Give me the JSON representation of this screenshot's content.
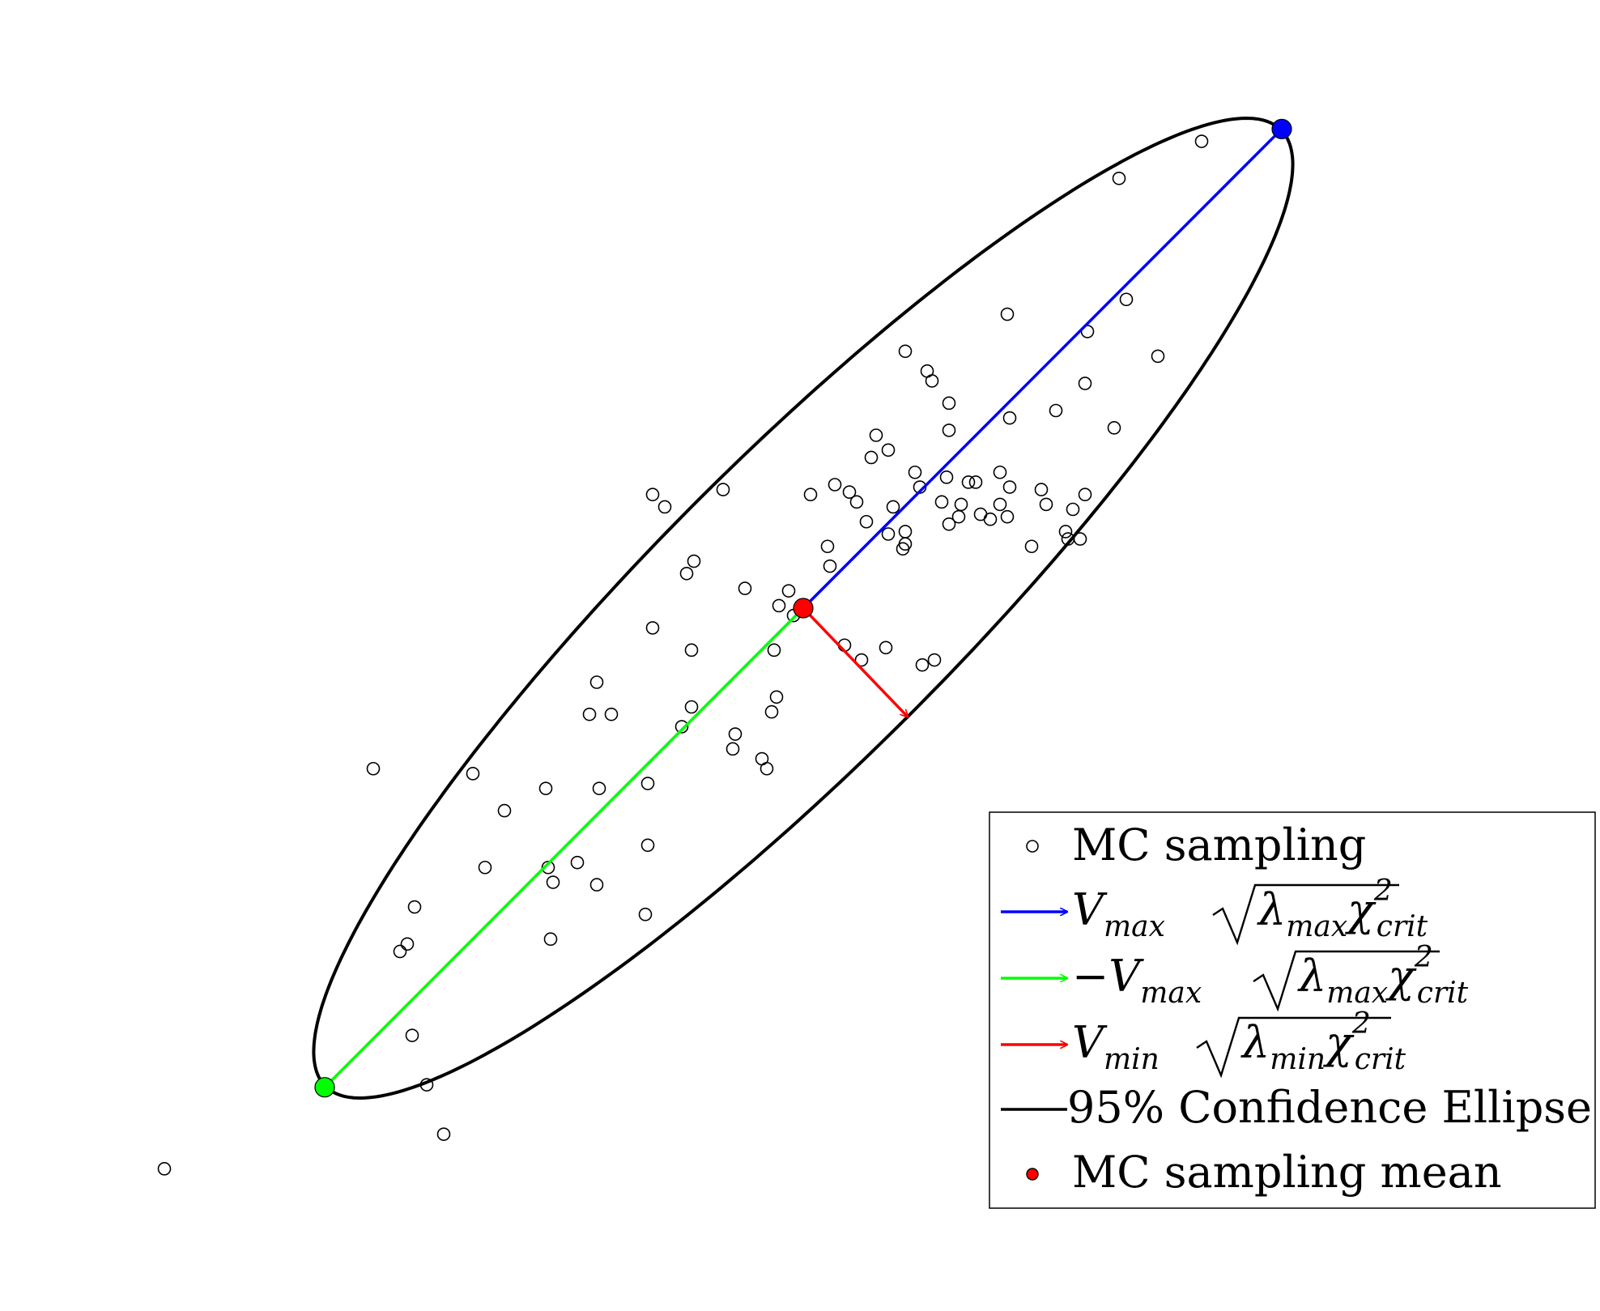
{
  "chart_data": {
    "type": "scatter",
    "title": "",
    "xlabel": "",
    "ylabel": "",
    "axes_visible": false,
    "grid": false,
    "legend_position": "bottom-right",
    "colors": {
      "samples": "#000000",
      "vmax": "#0000ff",
      "neg_vmax": "#00ff00",
      "vmin": "#ff0000",
      "ellipse": "#000000",
      "mean": "#ff0000"
    },
    "mean": {
      "x": 0,
      "y": 0
    },
    "vmax_endpoint": {
      "x": 19.7,
      "y": 19.4
    },
    "neg_vmax_endpoint": {
      "x": -19.7,
      "y": -19.4
    },
    "vmin_endpoint": {
      "x": 4.3,
      "y": -4.4
    },
    "ellipse": {
      "center": {
        "x": 0,
        "y": 0
      },
      "semi_major": 27.6,
      "semi_minor": 6.15,
      "angle_deg": 44.5,
      "label": "95% Confidence Ellipse"
    },
    "samples": [
      [
        16.4,
        18.9
      ],
      [
        13.0,
        17.4
      ],
      [
        13.3,
        12.5
      ],
      [
        8.4,
        11.9
      ],
      [
        11.7,
        11.2
      ],
      [
        14.6,
        10.2
      ],
      [
        11.6,
        9.1
      ],
      [
        4.2,
        10.4
      ],
      [
        5.1,
        9.6
      ],
      [
        5.3,
        9.2
      ],
      [
        6.0,
        8.3
      ],
      [
        10.4,
        8.0
      ],
      [
        8.5,
        7.7
      ],
      [
        6.0,
        7.2
      ],
      [
        12.8,
        7.3
      ],
      [
        3.0,
        7.0
      ],
      [
        3.5,
        6.4
      ],
      [
        2.8,
        6.1
      ],
      [
        4.6,
        5.5
      ],
      [
        5.9,
        5.3
      ],
      [
        7.1,
        5.1
      ],
      [
        4.8,
        4.9
      ],
      [
        1.3,
        5.0
      ],
      [
        0.3,
        4.6
      ],
      [
        6.8,
        5.1
      ],
      [
        8.1,
        5.5
      ],
      [
        8.5,
        4.9
      ],
      [
        5.7,
        4.3
      ],
      [
        9.8,
        4.8
      ],
      [
        11.6,
        4.6
      ],
      [
        11.1,
        4.0
      ],
      [
        8.1,
        4.2
      ],
      [
        8.4,
        3.7
      ],
      [
        7.3,
        3.8
      ],
      [
        1.9,
        4.7
      ],
      [
        -6.2,
        4.6
      ],
      [
        -3.3,
        4.8
      ],
      [
        -5.7,
        4.1
      ],
      [
        2.2,
        4.3
      ],
      [
        3.7,
        4.1
      ],
      [
        6.5,
        4.2
      ],
      [
        6.4,
        3.7
      ],
      [
        10.0,
        4.2
      ],
      [
        10.8,
        3.1
      ],
      [
        11.4,
        2.8
      ],
      [
        10.9,
        2.8
      ],
      [
        9.4,
        2.5
      ],
      [
        7.7,
        3.6
      ],
      [
        6.0,
        3.4
      ],
      [
        3.5,
        3.0
      ],
      [
        4.2,
        3.1
      ],
      [
        4.2,
        2.6
      ],
      [
        4.1,
        2.4
      ],
      [
        2.6,
        3.5
      ],
      [
        1.0,
        2.5
      ],
      [
        1.1,
        1.7
      ],
      [
        -0.6,
        0.7
      ],
      [
        -1.0,
        0.1
      ],
      [
        -0.4,
        -0.3
      ],
      [
        3.4,
        -1.6
      ],
      [
        5.4,
        -2.1
      ],
      [
        4.9,
        -2.3
      ],
      [
        2.4,
        -2.1
      ],
      [
        1.7,
        -1.5
      ],
      [
        -2.4,
        0.8
      ],
      [
        -4.8,
        1.4
      ],
      [
        -4.5,
        1.9
      ],
      [
        -6.2,
        -0.8
      ],
      [
        -4.6,
        -1.7
      ],
      [
        -1.2,
        -1.7
      ],
      [
        -1.1,
        -3.6
      ],
      [
        -1.3,
        -4.2
      ],
      [
        -1.7,
        -6.1
      ],
      [
        -1.5,
        -6.5
      ],
      [
        -2.8,
        -5.1
      ],
      [
        -2.9,
        -5.7
      ],
      [
        -4.6,
        -4.0
      ],
      [
        -5.0,
        -4.8
      ],
      [
        -8.5,
        -3.0
      ],
      [
        -8.8,
        -4.3
      ],
      [
        -7.9,
        -4.3
      ],
      [
        -6.4,
        -7.1
      ],
      [
        -8.4,
        -7.3
      ],
      [
        -10.6,
        -7.3
      ],
      [
        -13.6,
        -6.7
      ],
      [
        -12.3,
        -8.2
      ],
      [
        -9.3,
        -10.3
      ],
      [
        -10.5,
        -10.5
      ],
      [
        -10.3,
        -11.1
      ],
      [
        -6.4,
        -9.6
      ],
      [
        -8.5,
        -11.2
      ],
      [
        -13.1,
        -10.5
      ],
      [
        -6.5,
        -12.4
      ],
      [
        -10.4,
        -13.4
      ],
      [
        -17.7,
        -6.5
      ],
      [
        -16.0,
        -12.1
      ],
      [
        -16.3,
        -13.6
      ],
      [
        -16.6,
        -13.9
      ],
      [
        -16.1,
        -17.3
      ],
      [
        -15.5,
        -19.3
      ],
      [
        -14.8,
        -21.3
      ],
      [
        -26.3,
        -22.7
      ]
    ],
    "legend": [
      {
        "key": "samples",
        "label": "MC sampling"
      },
      {
        "key": "vmax",
        "label": "V_max √(λ_max χ²_crit)"
      },
      {
        "key": "neg_vmax",
        "label": "−V_max √(λ_max χ²_crit)"
      },
      {
        "key": "vmin",
        "label": "V_min √(λ_min χ²_crit)"
      },
      {
        "key": "ellipse",
        "label": "95% Confidence Ellipse"
      },
      {
        "key": "mean",
        "label": "MC sampling mean"
      }
    ]
  }
}
